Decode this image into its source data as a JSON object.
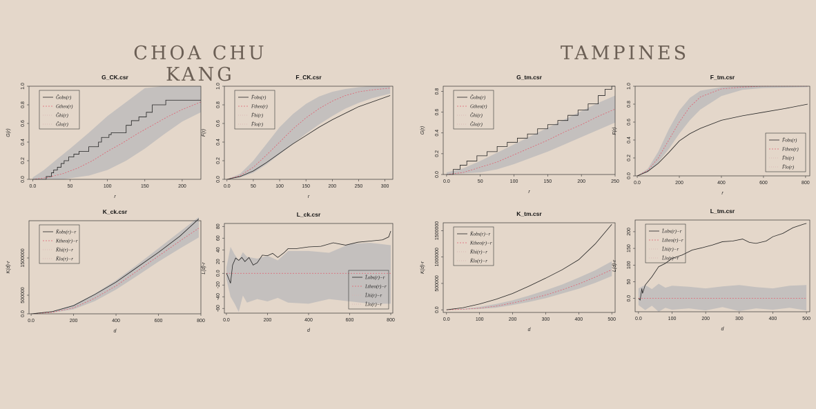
{
  "headings": {
    "left": "CHOA CHU KANG",
    "right": "TAMPINES"
  },
  "chart_data": [
    {
      "id": "G_CK",
      "type": "line",
      "title": "G_CK.csr",
      "xlabel": "r",
      "ylabel": "G(r)",
      "xlim": [
        -5,
        225
      ],
      "ylim": [
        0,
        1.0
      ],
      "xticks": [
        0,
        50,
        100,
        150,
        200
      ],
      "yticks": [
        0.0,
        0.2,
        0.4,
        0.6,
        0.8,
        1.0
      ],
      "legend_pos": "top-left",
      "legend": [
        "Ĝobs(r)",
        "Gtheo(r)",
        "Ĝhi(r)",
        "Ĝlo(r)"
      ],
      "obs": {
        "step": true,
        "x": [
          0,
          18,
          25,
          28,
          33,
          38,
          42,
          48,
          55,
          62,
          75,
          88,
          92,
          102,
          105,
          115,
          125,
          132,
          142,
          152,
          160,
          178,
          225
        ],
        "y": [
          0,
          0.03,
          0.07,
          0.1,
          0.13,
          0.17,
          0.2,
          0.24,
          0.27,
          0.3,
          0.35,
          0.4,
          0.45,
          0.48,
          0.5,
          0.5,
          0.58,
          0.63,
          0.67,
          0.72,
          0.8,
          0.85,
          0.85
        ]
      },
      "theo": {
        "x": [
          0,
          20,
          40,
          60,
          80,
          100,
          120,
          140,
          160,
          180,
          200,
          225
        ],
        "y": [
          0,
          0.02,
          0.06,
          0.12,
          0.2,
          0.3,
          0.39,
          0.49,
          0.58,
          0.67,
          0.75,
          0.83
        ]
      },
      "hi": {
        "x": [
          0,
          15,
          30,
          50,
          75,
          100,
          125,
          150,
          175,
          200,
          225
        ],
        "y": [
          0.02,
          0.1,
          0.2,
          0.33,
          0.5,
          0.68,
          0.83,
          0.98,
          1.0,
          1.0,
          1.0
        ]
      },
      "lo": {
        "x": [
          0,
          40,
          75,
          100,
          125,
          150,
          175,
          200,
          225
        ],
        "y": [
          0,
          0,
          0.04,
          0.1,
          0.2,
          0.33,
          0.48,
          0.62,
          0.72
        ]
      }
    },
    {
      "id": "F_CK",
      "type": "line",
      "title": "F_CK.csr",
      "xlabel": "r",
      "ylabel": "F(r)",
      "xlim": [
        -5,
        315
      ],
      "ylim": [
        0,
        1.0
      ],
      "xticks": [
        0,
        50,
        100,
        150,
        200,
        250,
        300
      ],
      "yticks": [
        0.0,
        0.2,
        0.4,
        0.6,
        0.8,
        1.0
      ],
      "legend_pos": "top-left",
      "legend": [
        "F̂obs(r)",
        "Ftheo(r)",
        "F̂hi(r)",
        "F̂lo(r)"
      ],
      "obs": {
        "x": [
          0,
          25,
          50,
          75,
          100,
          125,
          150,
          175,
          200,
          225,
          250,
          275,
          310
        ],
        "y": [
          0,
          0.03,
          0.09,
          0.18,
          0.28,
          0.38,
          0.47,
          0.56,
          0.64,
          0.71,
          0.78,
          0.83,
          0.9
        ]
      },
      "theo": {
        "x": [
          0,
          25,
          50,
          75,
          100,
          125,
          150,
          175,
          200,
          225,
          250,
          275,
          310
        ],
        "y": [
          0,
          0.04,
          0.13,
          0.26,
          0.4,
          0.54,
          0.66,
          0.76,
          0.84,
          0.9,
          0.94,
          0.96,
          0.98
        ]
      },
      "hi": {
        "x": [
          0,
          25,
          50,
          75,
          100,
          125,
          150,
          175,
          200,
          225,
          250,
          275,
          310
        ],
        "y": [
          0,
          0.06,
          0.2,
          0.38,
          0.56,
          0.7,
          0.81,
          0.89,
          0.94,
          0.97,
          0.99,
          1.0,
          1.0
        ]
      },
      "lo": {
        "x": [
          0,
          25,
          50,
          75,
          100,
          125,
          150,
          175,
          200,
          225,
          250,
          275,
          310
        ],
        "y": [
          0,
          0.02,
          0.07,
          0.16,
          0.27,
          0.38,
          0.49,
          0.59,
          0.68,
          0.76,
          0.82,
          0.87,
          0.92
        ]
      }
    },
    {
      "id": "K_CK",
      "type": "line",
      "title": "K_ck.csr",
      "xlabel": "d",
      "ylabel": "K(d)-r",
      "xlim": [
        -10,
        800
      ],
      "ylim": [
        0,
        2500000
      ],
      "xticks": [
        0,
        200,
        400,
        600,
        800
      ],
      "yticks": [
        0,
        500000,
        1500000
      ],
      "legend_pos": "top-left",
      "legend": [
        "K̂obs(r)−r",
        "Ktheo(r)−r",
        "K̂hi(r)−r",
        "K̂lo(r)−r"
      ],
      "obs": {
        "x": [
          0,
          100,
          200,
          300,
          400,
          500,
          600,
          700,
          790
        ],
        "y": [
          0,
          60000,
          220000,
          520000,
          850000,
          1250000,
          1650000,
          2080000,
          2550000
        ]
      },
      "theo": {
        "x": [
          0,
          100,
          200,
          300,
          400,
          500,
          600,
          700,
          790
        ],
        "y": [
          0,
          40000,
          160000,
          420000,
          750000,
          1150000,
          1550000,
          1950000,
          2300000
        ]
      },
      "hi": {
        "x": [
          0,
          100,
          200,
          300,
          400,
          500,
          600,
          700,
          790
        ],
        "y": [
          0,
          70000,
          240000,
          540000,
          900000,
          1320000,
          1760000,
          2200000,
          2600000
        ]
      },
      "lo": {
        "x": [
          0,
          100,
          200,
          300,
          400,
          500,
          600,
          700,
          790
        ],
        "y": [
          0,
          30000,
          120000,
          340000,
          650000,
          1020000,
          1400000,
          1750000,
          2050000
        ]
      }
    },
    {
      "id": "L_CK",
      "type": "line",
      "title": "L_ck.csr",
      "xlabel": "d",
      "ylabel": "L(d)-r",
      "xlim": [
        -10,
        810
      ],
      "ylim": [
        -68,
        85
      ],
      "xticks": [
        0,
        200,
        400,
        600,
        800
      ],
      "yticks": [
        -60,
        -40,
        -20,
        0,
        20,
        40,
        60,
        80
      ],
      "legend_pos": "bottom-right",
      "legend": [
        "L̂obs(r)−r",
        "Ltheo(r)−r",
        "L̂hi(r)−r",
        "L̂lo(r)−r"
      ],
      "obs": {
        "x": [
          0,
          10,
          20,
          30,
          45,
          60,
          75,
          90,
          110,
          130,
          150,
          175,
          200,
          225,
          250,
          280,
          300,
          340,
          400,
          460,
          520,
          580,
          640,
          700,
          760,
          790,
          800
        ],
        "y": [
          0,
          -8,
          -17,
          14,
          26,
          22,
          27,
          20,
          27,
          14,
          18,
          31,
          30,
          34,
          27,
          35,
          42,
          42,
          45,
          46,
          52,
          48,
          53,
          55,
          57,
          62,
          72
        ]
      },
      "theo": {
        "x": [
          0,
          800
        ],
        "y": [
          0,
          0
        ]
      },
      "hi": {
        "x": [
          0,
          20,
          40,
          60,
          80,
          100,
          150,
          200,
          250,
          300,
          400,
          500,
          600,
          700,
          800
        ],
        "y": [
          10,
          45,
          32,
          22,
          36,
          28,
          25,
          30,
          22,
          38,
          38,
          35,
          50,
          52,
          48
        ]
      },
      "lo": {
        "x": [
          0,
          20,
          40,
          60,
          80,
          100,
          150,
          200,
          250,
          300,
          400,
          500,
          600,
          700,
          800
        ],
        "y": [
          -10,
          -40,
          -52,
          -66,
          -38,
          -50,
          -44,
          -48,
          -42,
          -50,
          -52,
          -44,
          -48,
          -52,
          -52
        ]
      }
    },
    {
      "id": "G_TM",
      "type": "line",
      "title": "G_tm.csr",
      "xlabel": "r",
      "ylabel": "G(r)",
      "xlim": [
        -5,
        250
      ],
      "ylim": [
        0,
        0.85
      ],
      "xticks": [
        0,
        50,
        100,
        150,
        200,
        250
      ],
      "yticks": [
        0.0,
        0.2,
        0.4,
        0.6,
        0.8
      ],
      "legend_pos": "top-left",
      "legend": [
        "Ĝobs(r)",
        "Gtheo(r)",
        "Ĝhi(r)",
        "Ĝlo(r)"
      ],
      "obs": {
        "step": true,
        "x": [
          0,
          10,
          20,
          30,
          45,
          60,
          75,
          90,
          105,
          120,
          135,
          150,
          165,
          180,
          195,
          210,
          225,
          235,
          245,
          250
        ],
        "y": [
          0,
          0.05,
          0.09,
          0.13,
          0.18,
          0.22,
          0.27,
          0.31,
          0.35,
          0.39,
          0.44,
          0.48,
          0.52,
          0.57,
          0.62,
          0.68,
          0.76,
          0.82,
          0.85,
          0.85
        ]
      },
      "theo": {
        "x": [
          0,
          25,
          50,
          75,
          100,
          125,
          150,
          175,
          200,
          225,
          250
        ],
        "y": [
          0,
          0.02,
          0.07,
          0.12,
          0.19,
          0.26,
          0.33,
          0.41,
          0.48,
          0.56,
          0.63
        ]
      },
      "hi": {
        "x": [
          0,
          25,
          50,
          75,
          100,
          125,
          150,
          175,
          200,
          225,
          250
        ],
        "y": [
          0.02,
          0.06,
          0.13,
          0.21,
          0.29,
          0.37,
          0.45,
          0.53,
          0.61,
          0.69,
          0.76
        ]
      },
      "lo": {
        "x": [
          0,
          50,
          75,
          100,
          125,
          150,
          175,
          200,
          225,
          250
        ],
        "y": [
          0,
          0.02,
          0.05,
          0.1,
          0.16,
          0.22,
          0.29,
          0.36,
          0.43,
          0.5
        ]
      }
    },
    {
      "id": "F_TM",
      "type": "line",
      "title": "F_tm.csr",
      "xlabel": "r",
      "ylabel": "F(r)",
      "xlim": [
        -10,
        820
      ],
      "ylim": [
        0,
        1.0
      ],
      "xticks": [
        0,
        200,
        400,
        600,
        800
      ],
      "yticks": [
        0.0,
        0.2,
        0.4,
        0.6,
        0.8,
        1.0
      ],
      "legend_pos": "bottom-right",
      "legend": [
        "F̂obs(r)",
        "Ftheo(r)",
        "F̂hi(r)",
        "F̂lo(r)"
      ],
      "obs": {
        "x": [
          0,
          50,
          100,
          150,
          200,
          250,
          300,
          400,
          500,
          600,
          700,
          810
        ],
        "y": [
          0,
          0.05,
          0.14,
          0.26,
          0.39,
          0.47,
          0.53,
          0.62,
          0.67,
          0.71,
          0.75,
          0.8
        ]
      },
      "theo": {
        "x": [
          0,
          50,
          100,
          150,
          200,
          250,
          300,
          400,
          500,
          600,
          810
        ],
        "y": [
          0,
          0.06,
          0.2,
          0.4,
          0.6,
          0.77,
          0.88,
          0.97,
          0.99,
          1.0,
          1.0
        ]
      },
      "hi": {
        "x": [
          0,
          50,
          100,
          150,
          200,
          250,
          300,
          400,
          500,
          600,
          810
        ],
        "y": [
          0,
          0.08,
          0.27,
          0.52,
          0.73,
          0.87,
          0.95,
          0.99,
          1.0,
          1.0,
          1.0
        ]
      },
      "lo": {
        "x": [
          0,
          50,
          100,
          150,
          200,
          250,
          300,
          400,
          500,
          600,
          810
        ],
        "y": [
          0,
          0.04,
          0.15,
          0.3,
          0.47,
          0.62,
          0.74,
          0.89,
          0.96,
          0.98,
          0.99
        ]
      }
    },
    {
      "id": "K_TM",
      "type": "line",
      "title": "K_tm.csr",
      "xlabel": "d",
      "ylabel": "K(d)-r",
      "xlim": [
        -10,
        510
      ],
      "ylim": [
        -50000,
        1650000
      ],
      "xticks": [
        0,
        100,
        200,
        300,
        400,
        500
      ],
      "yticks": [
        0,
        500000,
        1000000,
        1500000
      ],
      "legend_pos": "top-left",
      "legend": [
        "K̂obs(r)−r",
        "Ktheo(r)−r",
        "K̂hi(r)−r",
        "K̂lo(r)−r"
      ],
      "obs": {
        "x": [
          0,
          50,
          100,
          150,
          200,
          250,
          300,
          350,
          400,
          450,
          500
        ],
        "y": [
          0,
          40000,
          110000,
          200000,
          310000,
          450000,
          600000,
          760000,
          950000,
          1250000,
          1620000
        ]
      },
      "theo": {
        "x": [
          0,
          50,
          100,
          150,
          200,
          250,
          300,
          350,
          400,
          450,
          500
        ],
        "y": [
          0,
          10000,
          30000,
          70000,
          130000,
          200000,
          280000,
          380000,
          490000,
          620000,
          760000
        ]
      },
      "hi": {
        "x": [
          0,
          50,
          100,
          150,
          200,
          250,
          300,
          350,
          400,
          450,
          500
        ],
        "y": [
          0,
          20000,
          55000,
          110000,
          180000,
          270000,
          370000,
          480000,
          610000,
          750000,
          920000
        ]
      },
      "lo": {
        "x": [
          0,
          50,
          100,
          150,
          200,
          250,
          300,
          350,
          400,
          450,
          500
        ],
        "y": [
          0,
          5000,
          15000,
          40000,
          90000,
          150000,
          220000,
          310000,
          400000,
          510000,
          640000
        ]
      }
    },
    {
      "id": "L_TM",
      "type": "line",
      "title": "L_tm.csr",
      "xlabel": "d",
      "ylabel": "L(d)-r",
      "xlim": [
        -10,
        510
      ],
      "ylim": [
        -40,
        235
      ],
      "xticks": [
        0,
        100,
        200,
        300,
        400,
        500
      ],
      "yticks": [
        0,
        50,
        100,
        150,
        200
      ],
      "legend_pos": "top-left",
      "legend": [
        "L̂obs(r)−r",
        "Ltheo(r)−r",
        "L̂hi(r)−r",
        "L̂lo(r)−r"
      ],
      "obs": {
        "x": [
          0,
          5,
          10,
          12,
          20,
          40,
          60,
          80,
          100,
          130,
          160,
          190,
          220,
          250,
          280,
          310,
          330,
          350,
          380,
          400,
          430,
          460,
          490,
          500
        ],
        "y": [
          0,
          -5,
          30,
          15,
          40,
          65,
          95,
          105,
          120,
          130,
          145,
          152,
          160,
          170,
          172,
          178,
          168,
          165,
          172,
          185,
          195,
          212,
          222,
          225
        ]
      },
      "theo": {
        "x": [
          0,
          500
        ],
        "y": [
          0,
          0
        ]
      },
      "hi": {
        "x": [
          0,
          20,
          40,
          60,
          80,
          100,
          150,
          200,
          250,
          300,
          350,
          400,
          450,
          500
        ],
        "y": [
          30,
          40,
          28,
          44,
          32,
          38,
          35,
          30,
          36,
          40,
          34,
          30,
          38,
          40
        ]
      },
      "lo": {
        "x": [
          0,
          20,
          40,
          60,
          80,
          100,
          150,
          200,
          250,
          300,
          350,
          400,
          450,
          500
        ],
        "y": [
          -20,
          -35,
          -22,
          -40,
          -28,
          -34,
          -30,
          -36,
          -26,
          -38,
          -30,
          -34,
          -28,
          -36
        ]
      }
    }
  ]
}
